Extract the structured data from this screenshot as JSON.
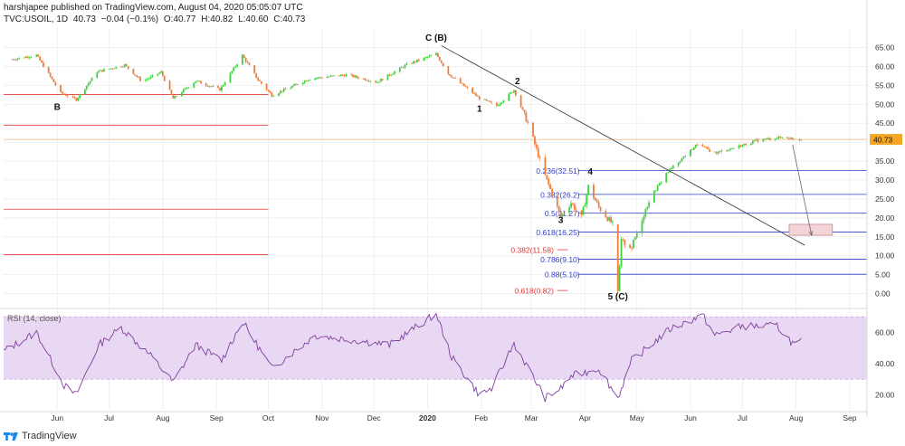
{
  "header": {
    "publisher_line": "harshjapee published on TradingView.com, August 04, 2020 05:05:07 UTC",
    "symbol": "TVC:USOIL, 1D",
    "last": "40.73",
    "change": "−0.04 (−0.1%)",
    "open": "O:40.77",
    "high": "H:40.82",
    "low": "L:40.60",
    "close": "C:40.73"
  },
  "footer": {
    "brand": "TradingView"
  },
  "colors": {
    "up": "#26a69a",
    "up_bright": "#3fcf3f",
    "down": "#ef7d3b",
    "fib_blue": "#2f3cc7",
    "fib_red": "#e53935",
    "rsi_line": "#7e3f9c",
    "rsi_band": "#e9d8f3",
    "price_line": "#f0b27a",
    "grid": "#eef0f3"
  },
  "chart_data": [
    {
      "type": "candlestick",
      "name": "price",
      "y_ticks": [
        "65.00",
        "60.00",
        "55.00",
        "50.00",
        "45.00",
        "40.00",
        "35.00",
        "30.00",
        "25.00",
        "20.00",
        "15.00",
        "10.00",
        "5.00",
        "0.00"
      ],
      "ylim": [
        -2.5,
        68
      ],
      "x_labels": [
        "Jun",
        "Jul",
        "Aug",
        "Sep",
        "Oct",
        "Nov",
        "Dec",
        "2020",
        "Feb",
        "Mar",
        "Apr",
        "May",
        "Jun",
        "Jul",
        "Aug",
        "Sep"
      ],
      "current_price_label": "40.73",
      "current_price": 40.73,
      "keypoints": [
        {
          "d": "2019-05-06",
          "v": 61.9
        },
        {
          "d": "2019-05-20",
          "v": 63.0
        },
        {
          "d": "2019-06-03",
          "v": 53.0
        },
        {
          "d": "2019-06-12",
          "v": 51.3
        },
        {
          "d": "2019-06-24",
          "v": 58.6
        },
        {
          "d": "2019-07-10",
          "v": 60.4
        },
        {
          "d": "2019-07-20",
          "v": 56.0
        },
        {
          "d": "2019-07-31",
          "v": 58.5
        },
        {
          "d": "2019-08-07",
          "v": 51.5
        },
        {
          "d": "2019-08-20",
          "v": 56.2
        },
        {
          "d": "2019-09-03",
          "v": 53.9
        },
        {
          "d": "2019-09-16",
          "v": 62.9
        },
        {
          "d": "2019-09-25",
          "v": 56.5
        },
        {
          "d": "2019-10-03",
          "v": 52.4
        },
        {
          "d": "2019-10-25",
          "v": 56.8
        },
        {
          "d": "2019-11-15",
          "v": 57.8
        },
        {
          "d": "2019-12-03",
          "v": 55.9
        },
        {
          "d": "2019-12-20",
          "v": 60.5
        },
        {
          "d": "2020-01-06",
          "v": 63.3
        },
        {
          "d": "2020-01-13",
          "v": 58.1
        },
        {
          "d": "2020-01-31",
          "v": 51.6
        },
        {
          "d": "2020-02-10",
          "v": 49.6
        },
        {
          "d": "2020-02-20",
          "v": 53.8
        },
        {
          "d": "2020-02-28",
          "v": 45.0
        },
        {
          "d": "2020-03-09",
          "v": 31.1
        },
        {
          "d": "2020-03-18",
          "v": 20.4
        },
        {
          "d": "2020-03-24",
          "v": 24.0
        },
        {
          "d": "2020-03-30",
          "v": 20.1
        },
        {
          "d": "2020-04-03",
          "v": 28.3
        },
        {
          "d": "2020-04-09",
          "v": 22.8
        },
        {
          "d": "2020-04-17",
          "v": 18.3
        },
        {
          "d": "2020-04-20",
          "v": 0.0
        },
        {
          "d": "2020-04-22",
          "v": 13.8
        },
        {
          "d": "2020-04-28",
          "v": 12.3
        },
        {
          "d": "2020-05-08",
          "v": 24.7
        },
        {
          "d": "2020-05-18",
          "v": 31.8
        },
        {
          "d": "2020-06-05",
          "v": 39.5
        },
        {
          "d": "2020-06-15",
          "v": 37.1
        },
        {
          "d": "2020-06-26",
          "v": 38.5
        },
        {
          "d": "2020-07-10",
          "v": 40.5
        },
        {
          "d": "2020-07-24",
          "v": 41.3
        },
        {
          "d": "2020-08-04",
          "v": 40.73
        }
      ],
      "annotations": [
        {
          "text": "B",
          "d": "2019-06-01",
          "v": 48.5
        },
        {
          "text": "C (B)",
          "d": "2020-01-06",
          "v": 66.8
        },
        {
          "text": "1",
          "d": "2020-01-31",
          "v": 48.0
        },
        {
          "text": "2",
          "d": "2020-02-22",
          "v": 55.3
        },
        {
          "text": "4",
          "d": "2020-04-04",
          "v": 31.4
        },
        {
          "text": "3",
          "d": "2020-03-18",
          "v": 18.6
        },
        {
          "text": "5 (C)",
          "d": "2020-04-20",
          "v": -1.5
        }
      ],
      "trendline": {
        "from": {
          "d": "2020-01-09",
          "v": 65.5
        },
        "to": {
          "d": "2020-08-06",
          "v": 12.8
        }
      },
      "forecast_arrow": {
        "from": {
          "d": "2020-07-30",
          "v": 39.3
        },
        "to": {
          "d": "2020-08-10",
          "v": 15.4
        }
      },
      "target_box": {
        "d1": "2020-07-28",
        "d2": "2020-08-22",
        "v1": 18.3,
        "v2": 15.4
      },
      "red_levels": [
        {
          "v": 52.6,
          "d1": "2019-05-01",
          "d2": "2019-10-01"
        },
        {
          "v": 44.5,
          "d1": "2019-05-01",
          "d2": "2019-10-01"
        },
        {
          "v": 22.3,
          "d1": "2019-05-01",
          "d2": "2019-10-01"
        },
        {
          "v": 10.3,
          "d1": "2019-05-01",
          "d2": "2019-10-01"
        }
      ],
      "fib_blue": [
        {
          "label": "0.236(32.51)",
          "v": 32.51
        },
        {
          "label": "0.382(26.2)",
          "v": 26.2
        },
        {
          "label": "0.5(21.27)",
          "v": 21.27
        },
        {
          "label": "0.618(16.25)",
          "v": 16.25
        },
        {
          "label": "0.786(9.10)",
          "v": 9.1
        },
        {
          "label": "0.88(5.10)",
          "v": 5.1
        }
      ],
      "fib_red": [
        {
          "label": "0.382(11.58)",
          "v": 11.58
        },
        {
          "label": "0.618(0.82)",
          "v": 0.82
        }
      ]
    },
    {
      "type": "line",
      "name": "RSI",
      "title": "RSI (14, close)",
      "y_ticks": [
        "60.00",
        "40.00",
        "20.00"
      ],
      "ylim": [
        11,
        73
      ],
      "band": [
        30,
        70
      ],
      "keypoints": [
        {
          "d": "2019-05-01",
          "v": 48
        },
        {
          "d": "2019-05-20",
          "v": 60
        },
        {
          "d": "2019-06-05",
          "v": 26
        },
        {
          "d": "2019-06-12",
          "v": 20
        },
        {
          "d": "2019-06-25",
          "v": 52
        },
        {
          "d": "2019-07-08",
          "v": 63
        },
        {
          "d": "2019-07-25",
          "v": 45
        },
        {
          "d": "2019-08-07",
          "v": 28
        },
        {
          "d": "2019-08-20",
          "v": 52
        },
        {
          "d": "2019-09-04",
          "v": 42
        },
        {
          "d": "2019-09-16",
          "v": 67
        },
        {
          "d": "2019-10-03",
          "v": 37
        },
        {
          "d": "2019-10-28",
          "v": 58
        },
        {
          "d": "2019-11-20",
          "v": 55
        },
        {
          "d": "2019-12-10",
          "v": 52
        },
        {
          "d": "2020-01-06",
          "v": 72
        },
        {
          "d": "2020-01-15",
          "v": 44
        },
        {
          "d": "2020-01-31",
          "v": 20
        },
        {
          "d": "2020-02-07",
          "v": 24
        },
        {
          "d": "2020-02-20",
          "v": 53
        },
        {
          "d": "2020-03-09",
          "v": 18
        },
        {
          "d": "2020-03-18",
          "v": 24
        },
        {
          "d": "2020-03-24",
          "v": 32
        },
        {
          "d": "2020-04-03",
          "v": 35
        },
        {
          "d": "2020-04-09",
          "v": 37
        },
        {
          "d": "2020-04-20",
          "v": 18
        },
        {
          "d": "2020-04-28",
          "v": 42
        },
        {
          "d": "2020-05-20",
          "v": 62
        },
        {
          "d": "2020-06-08",
          "v": 71
        },
        {
          "d": "2020-06-15",
          "v": 58
        },
        {
          "d": "2020-07-01",
          "v": 64
        },
        {
          "d": "2020-07-21",
          "v": 64
        },
        {
          "d": "2020-07-31",
          "v": 52
        },
        {
          "d": "2020-08-04",
          "v": 54
        }
      ]
    }
  ]
}
